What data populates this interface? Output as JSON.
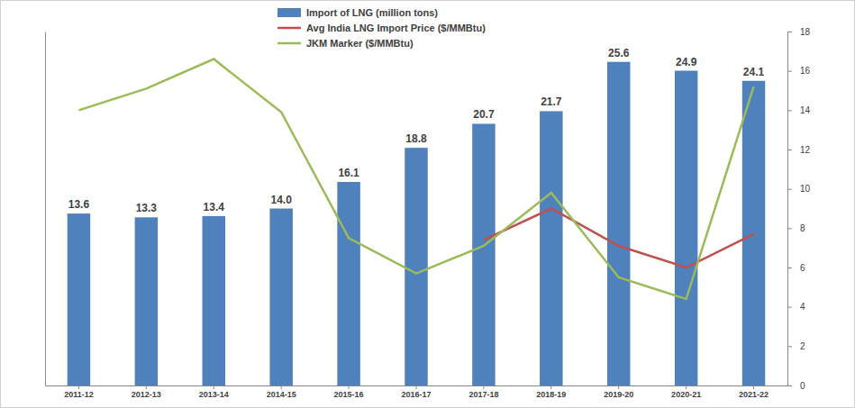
{
  "chart_data": {
    "type": "bar",
    "categories": [
      "2011-12",
      "2012-13",
      "2013-14",
      "2014-15",
      "2015-16",
      "2016-17",
      "2017-18",
      "2018-19",
      "2019-20",
      "2020-21",
      "2021-22"
    ],
    "ylim": [
      0,
      28
    ],
    "yticks": [],
    "y2lim": [
      0,
      18
    ],
    "y2ticks": [
      0,
      2,
      4,
      6,
      8,
      10,
      12,
      14,
      16,
      18
    ],
    "legend": "top",
    "series": [
      {
        "name": "Import of LNG (million tons)",
        "type": "bar",
        "color": "#4f81bd",
        "data_labels": true,
        "values": [
          13.6,
          13.3,
          13.4,
          14.0,
          16.1,
          18.8,
          20.7,
          21.7,
          25.6,
          24.9,
          24.1
        ],
        "value_labels": [
          "13.6",
          "13.3",
          "13.4",
          "14.0",
          "16.1",
          "18.8",
          "20.7",
          "21.7",
          "25.6",
          "24.9",
          "24.1"
        ]
      },
      {
        "name": "Avg India LNG Import Price ($/MMBtu)",
        "type": "line",
        "axis": "y2",
        "color": "#c0504d",
        "values": [
          null,
          null,
          null,
          null,
          null,
          null,
          7.4,
          9.0,
          7.1,
          6.0,
          7.7
        ]
      },
      {
        "name": "JKM Marker ($/MMBtu)",
        "type": "line",
        "axis": "y2",
        "color": "#9bbb59",
        "values": [
          14.0,
          15.1,
          16.6,
          13.9,
          7.5,
          5.7,
          7.1,
          9.8,
          5.5,
          4.4,
          15.2
        ]
      }
    ]
  }
}
